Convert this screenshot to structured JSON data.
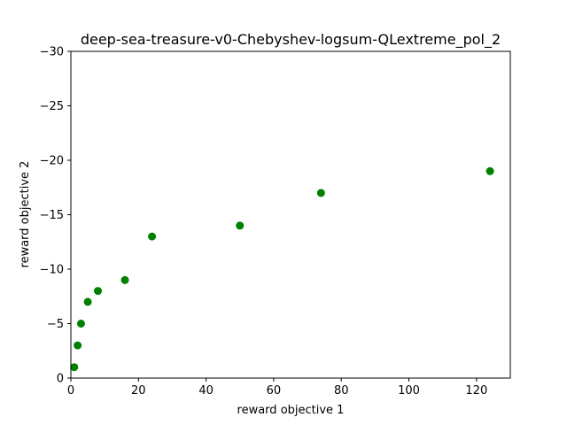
{
  "chart_data": {
    "type": "scatter",
    "title": "deep-sea-treasure-v0-Chebyshev-logsum-QLextreme_pol_2",
    "xlabel": "reward objective 1",
    "ylabel": "reward objective 2",
    "xlim": [
      0,
      130
    ],
    "ylim": [
      0,
      -30
    ],
    "y_inverted": true,
    "grid": false,
    "marker_color": "#008000",
    "x_ticks": [
      0,
      20,
      40,
      60,
      80,
      100,
      120
    ],
    "y_ticks": [
      0,
      -5,
      -10,
      -15,
      -20,
      -25,
      -30
    ],
    "x_tick_labels": [
      "0",
      "20",
      "40",
      "60",
      "80",
      "100",
      "120"
    ],
    "y_tick_labels": [
      "0",
      "−5",
      "−10",
      "−15",
      "−20",
      "−25",
      "−30"
    ],
    "points": [
      {
        "x": 1,
        "y": -1
      },
      {
        "x": 2,
        "y": -3
      },
      {
        "x": 3,
        "y": -5
      },
      {
        "x": 5,
        "y": -7
      },
      {
        "x": 8,
        "y": -8
      },
      {
        "x": 16,
        "y": -9
      },
      {
        "x": 24,
        "y": -13
      },
      {
        "x": 50,
        "y": -14
      },
      {
        "x": 74,
        "y": -17
      },
      {
        "x": 124,
        "y": -19
      }
    ]
  }
}
